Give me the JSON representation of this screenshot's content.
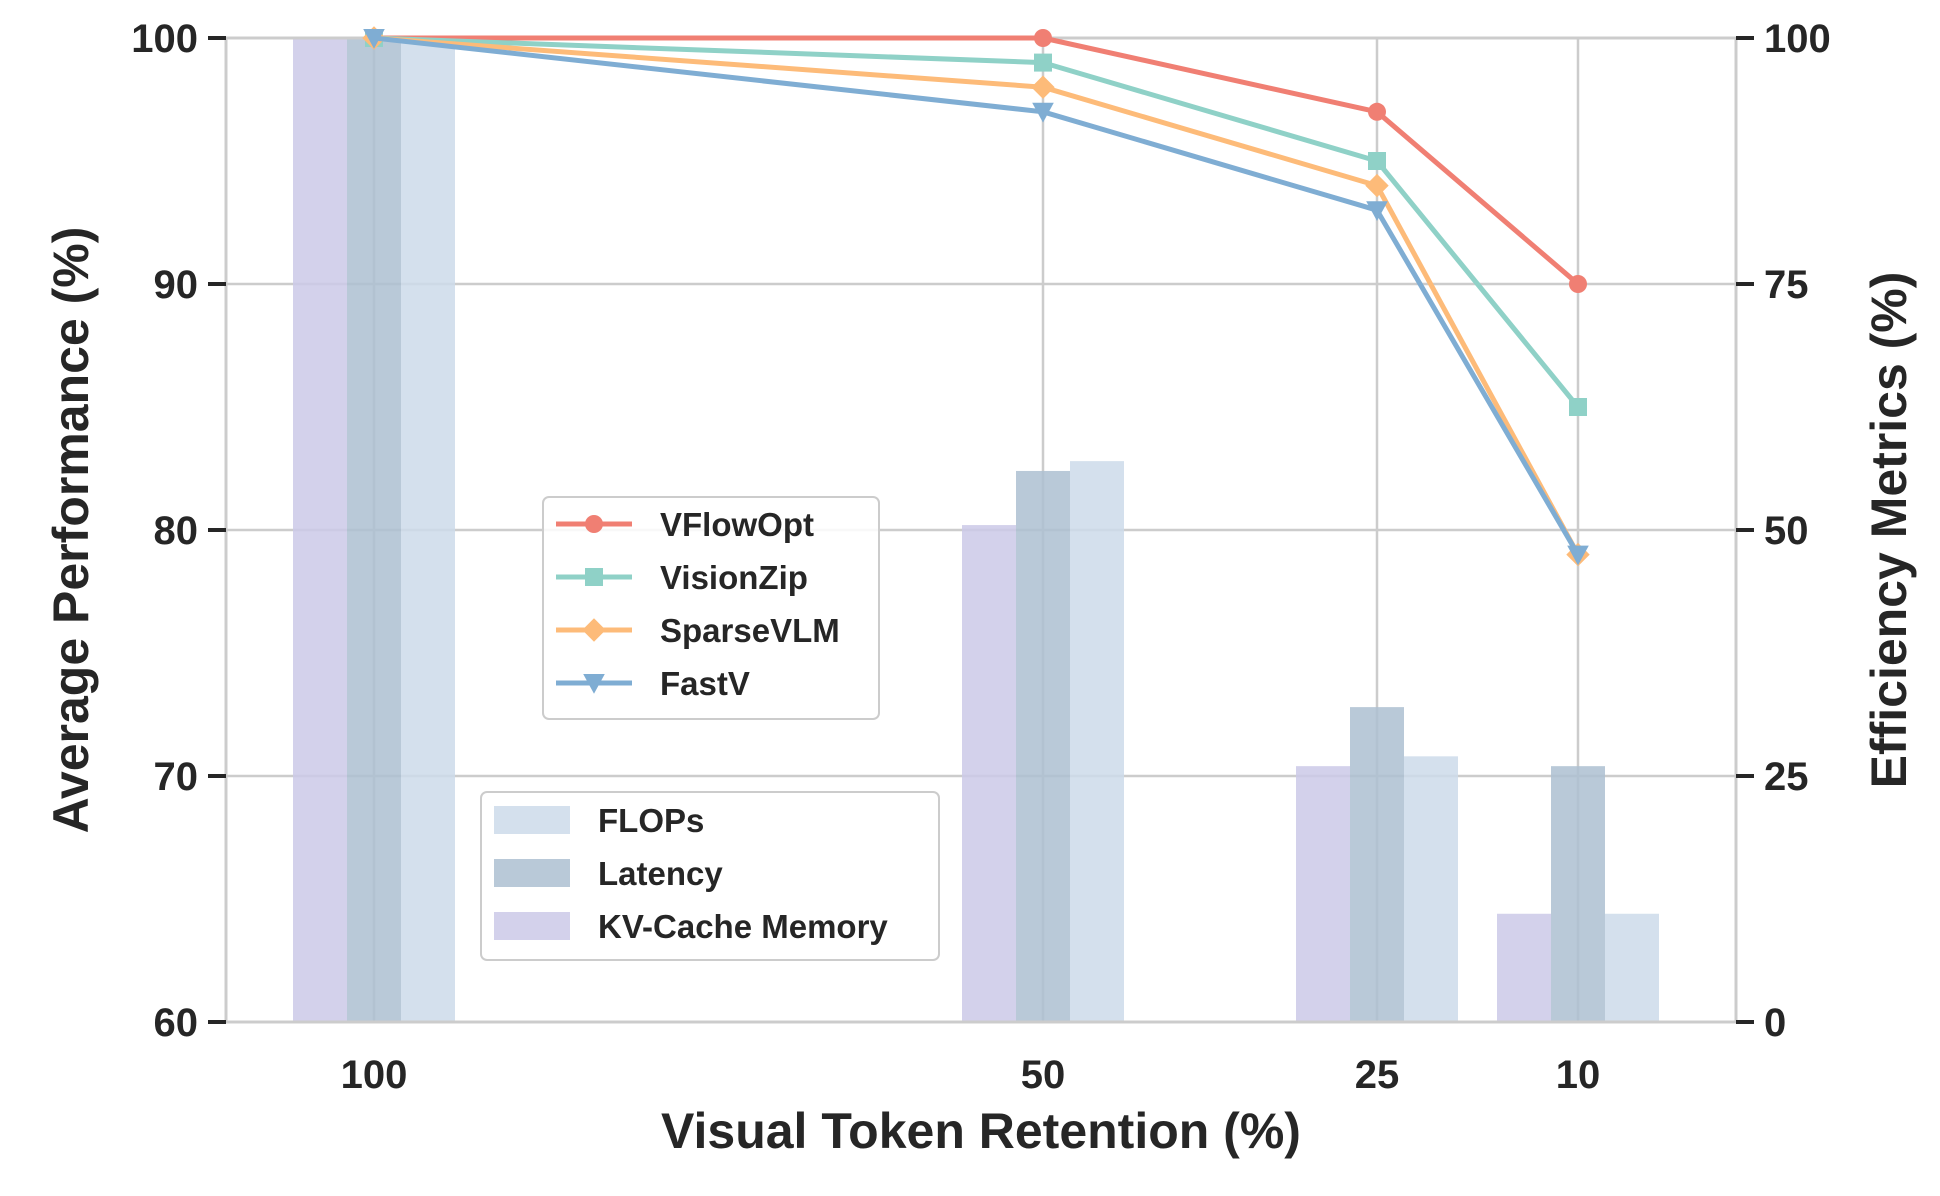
{
  "chart_data": {
    "type": "bar+line",
    "x_categories": [
      "100",
      "50",
      "25",
      "10"
    ],
    "xlabel": "Visual Token Retention (%)",
    "ylabel_left": "Average Performance (%)",
    "ylabel_right": "Efficiency Metrics (%)",
    "ylim_left": [
      60,
      100
    ],
    "ylim_right": [
      0,
      100
    ],
    "left_ticks": [
      60,
      70,
      80,
      90,
      100
    ],
    "right_ticks": [
      0,
      25,
      50,
      75,
      100
    ],
    "grid": true,
    "line_series": [
      {
        "name": "VFlowOpt",
        "color": "#f07f73",
        "marker": "circle",
        "values": [
          100,
          100,
          97,
          90
        ]
      },
      {
        "name": "VisionZip",
        "color": "#8fd1c7",
        "marker": "square",
        "values": [
          100,
          99,
          95,
          85
        ]
      },
      {
        "name": "SparseVLM",
        "color": "#fdbb79",
        "marker": "diamond",
        "values": [
          100,
          98,
          94,
          79
        ]
      },
      {
        "name": "FastV",
        "color": "#7fadd3",
        "marker": "triangle-down",
        "values": [
          100,
          97,
          93,
          79
        ]
      }
    ],
    "bar_series": [
      {
        "name": "FLOPs",
        "color": "#ccdaea",
        "values": [
          100,
          57,
          27,
          11
        ]
      },
      {
        "name": "Latency",
        "color": "#adbfd1",
        "values": [
          100,
          56,
          32,
          26
        ]
      },
      {
        "name": "KV-Cache Memory",
        "color": "#cbc9e8",
        "values": [
          100,
          50.5,
          26,
          11
        ]
      }
    ],
    "line_legend_placement": "center-left",
    "bar_legend_placement": "lower-left"
  }
}
